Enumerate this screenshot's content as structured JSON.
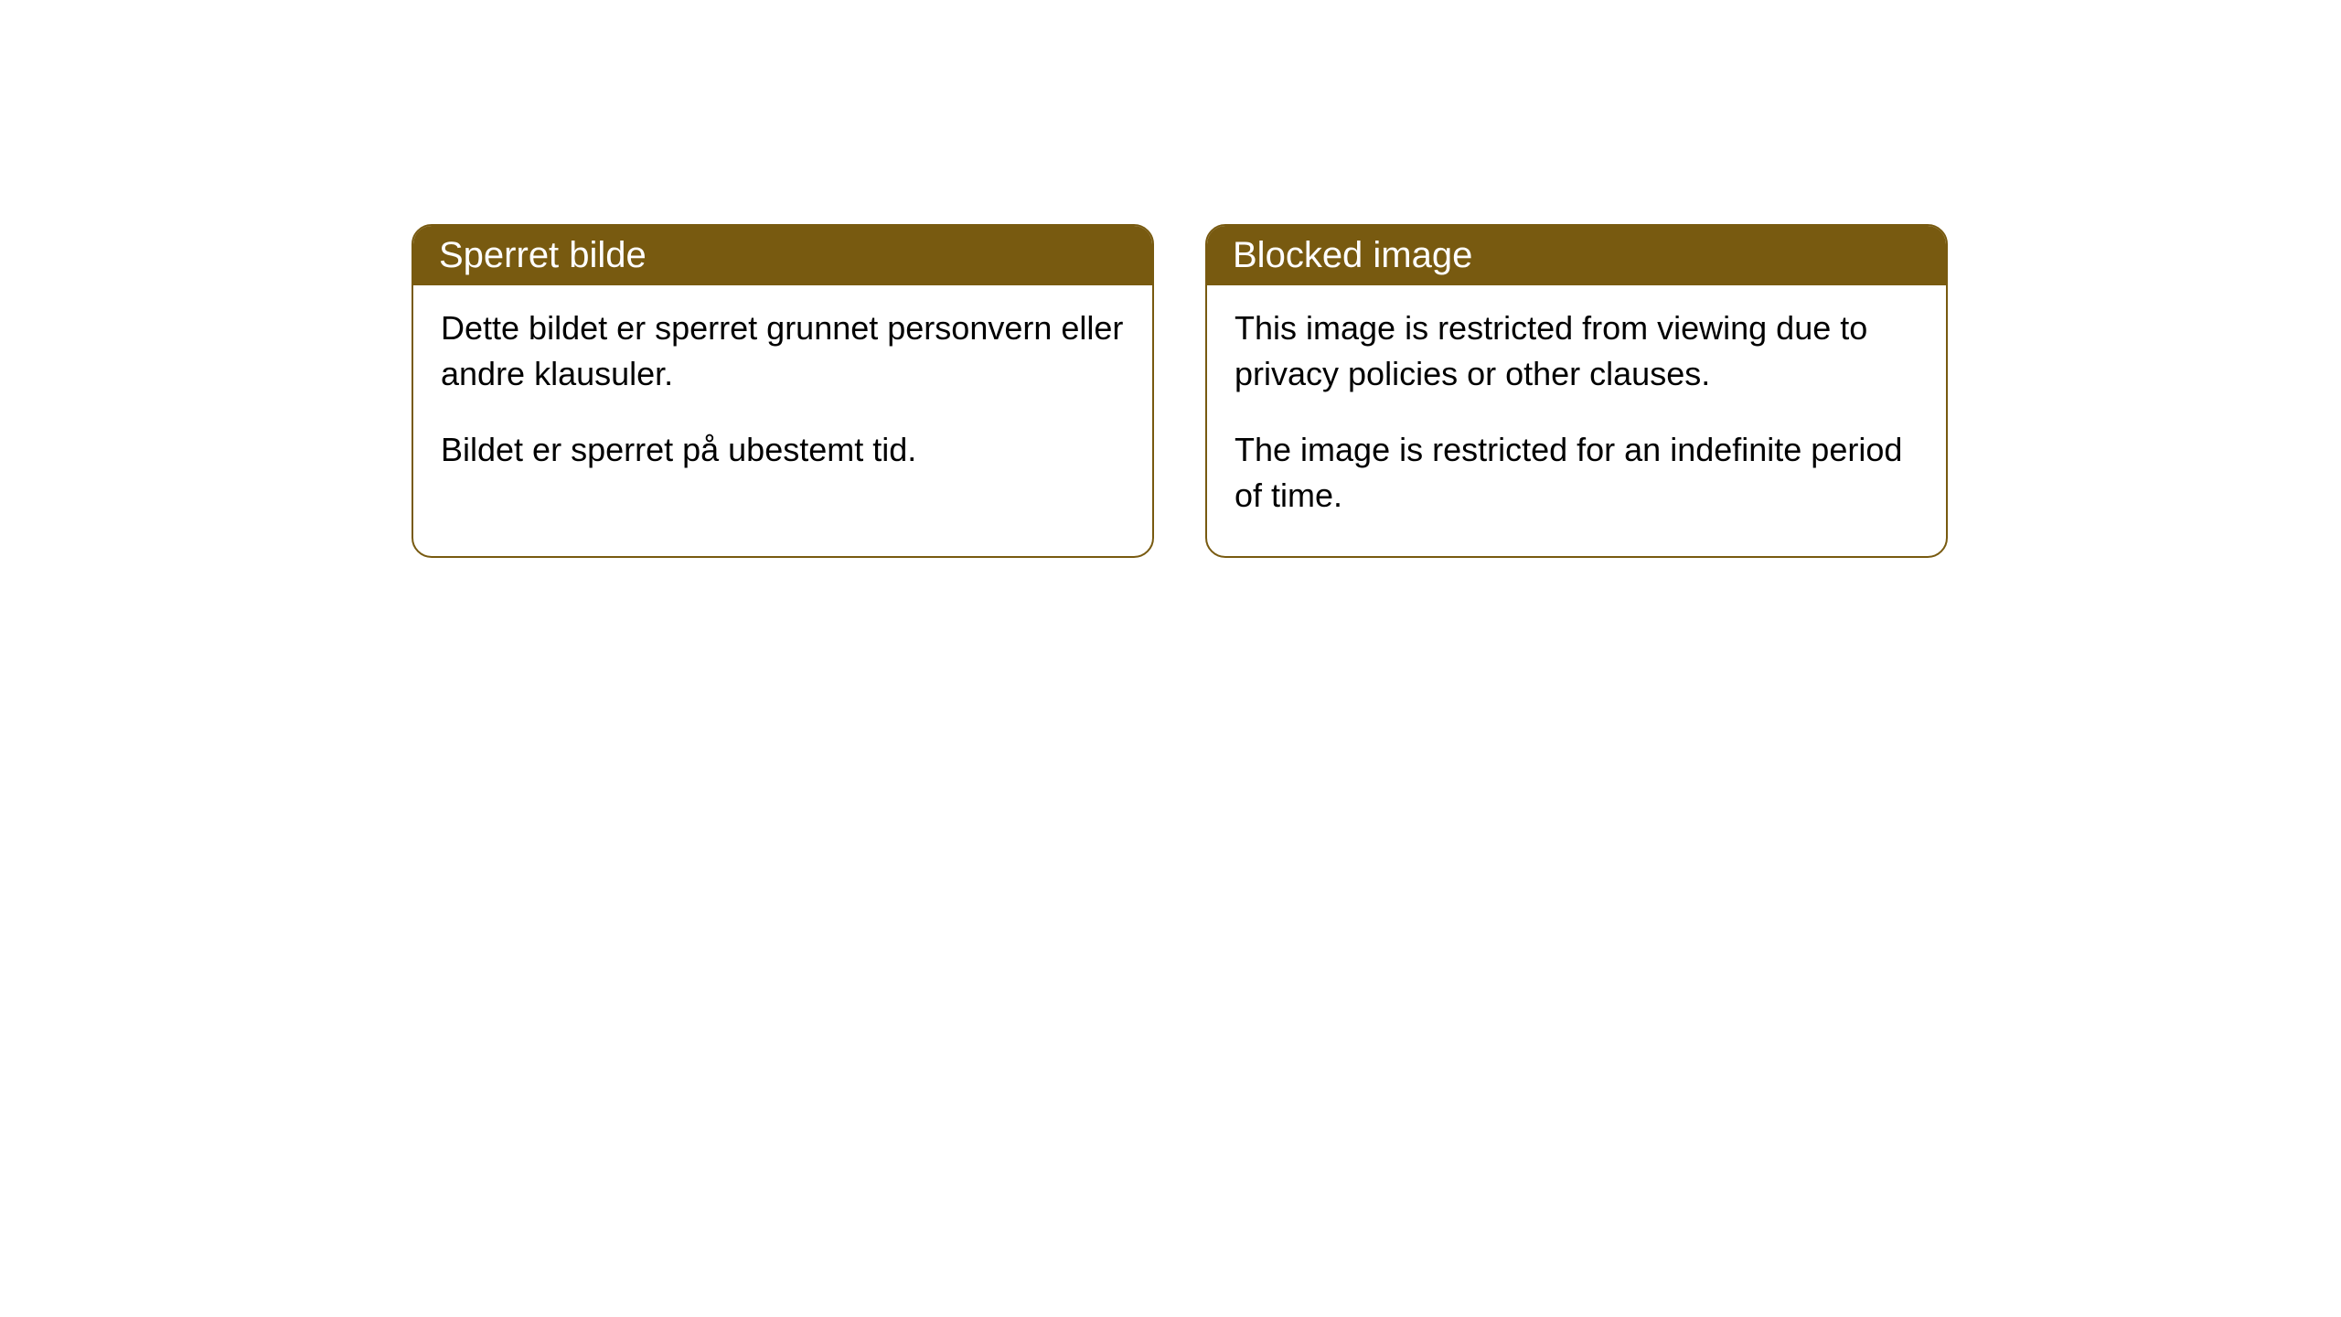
{
  "cards": [
    {
      "title": "Sperret bilde",
      "paragraph1": "Dette bildet er sperret grunnet personvern eller andre klausuler.",
      "paragraph2": "Bildet er sperret på ubestemt tid."
    },
    {
      "title": "Blocked image",
      "paragraph1": "This image is restricted from viewing due to privacy policies or other clauses.",
      "paragraph2": "The image is restricted for an indefinite period of time."
    }
  ],
  "styling": {
    "header_background_color": "#785a10",
    "header_text_color": "#ffffff",
    "border_color": "#785a10",
    "body_background_color": "#ffffff",
    "body_text_color": "#000000",
    "border_radius": 22,
    "title_fontsize": 40,
    "body_fontsize": 36
  }
}
